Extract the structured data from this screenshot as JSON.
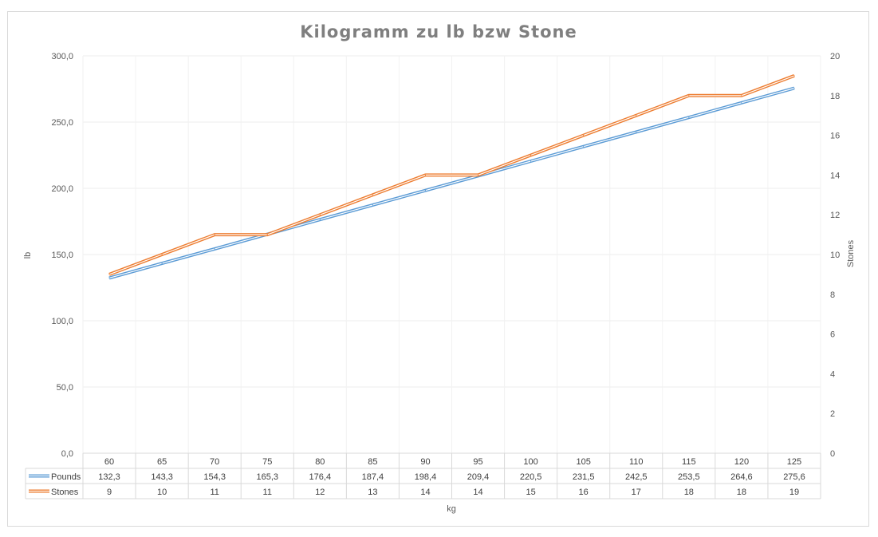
{
  "chart_data": {
    "type": "line",
    "title": "Kilogramm zu lb bzw Stone",
    "xlabel": "kg",
    "ylabel": "lb",
    "y2label": "Stones",
    "categories": [
      "60",
      "65",
      "70",
      "75",
      "80",
      "85",
      "90",
      "95",
      "100",
      "105",
      "110",
      "115",
      "120",
      "125"
    ],
    "ylim": [
      0,
      300
    ],
    "y_ticks": [
      "0,0",
      "50,0",
      "100,0",
      "150,0",
      "200,0",
      "250,0",
      "300,0"
    ],
    "y2lim": [
      0,
      20
    ],
    "y2_ticks": [
      "0",
      "2",
      "4",
      "6",
      "8",
      "10",
      "12",
      "14",
      "16",
      "18",
      "20"
    ],
    "grid": true,
    "legend_placement": "data-table",
    "series": [
      {
        "name": "Pounds",
        "axis": "left",
        "color": "#5b9bd5",
        "values": [
          132.3,
          143.3,
          154.3,
          165.3,
          176.4,
          187.4,
          198.4,
          209.4,
          220.5,
          231.5,
          242.5,
          253.5,
          264.6,
          275.6
        ],
        "labels": [
          "132,3",
          "143,3",
          "154,3",
          "165,3",
          "176,4",
          "187,4",
          "198,4",
          "209,4",
          "220,5",
          "231,5",
          "242,5",
          "253,5",
          "264,6",
          "275,6"
        ]
      },
      {
        "name": "Stones",
        "axis": "right",
        "color": "#ed7d31",
        "values": [
          9,
          10,
          11,
          11,
          12,
          13,
          14,
          14,
          15,
          16,
          17,
          18,
          18,
          19
        ],
        "labels": [
          "9",
          "10",
          "11",
          "11",
          "12",
          "13",
          "14",
          "14",
          "15",
          "16",
          "17",
          "18",
          "18",
          "19"
        ]
      }
    ]
  }
}
